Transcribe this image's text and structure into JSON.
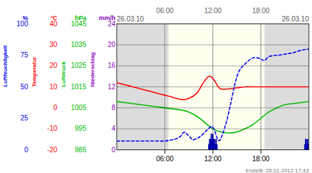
{
  "chart_data": {
    "type": "line",
    "date_start": "26.03.10",
    "date_end": "26.03.10",
    "created": "Erstellt: 26.01.2012 17:43",
    "xlim": [
      0,
      24
    ],
    "xticks": [
      {
        "value": 6,
        "label": "06:00"
      },
      {
        "value": 12,
        "label": "12:00"
      },
      {
        "value": 18,
        "label": "18:00"
      }
    ],
    "grid": true,
    "daytime": [
      6.5,
      18.5
    ],
    "night_color": "#DCDCDC",
    "day_color": "#FFFFF0",
    "series": [
      {
        "name": "Luftfeuchtigkeit",
        "unit": "%",
        "color": "#0000EE",
        "line_style": "dashed",
        "ylim": [
          0,
          100
        ],
        "yticks": [
          0,
          25,
          50,
          75,
          100
        ],
        "x": [
          0,
          1,
          2,
          3,
          4,
          5,
          6,
          6.5,
          7,
          7.5,
          8,
          8.2,
          8.5,
          8.7,
          9,
          9.3,
          9.5,
          10,
          10.5,
          11,
          11.5,
          12,
          12.5,
          13,
          14,
          15,
          16,
          17,
          18,
          18.5,
          19,
          20,
          21,
          22,
          23,
          24
        ],
        "values": [
          7,
          7,
          7,
          7,
          7,
          7,
          7,
          7.5,
          8,
          9,
          11,
          13,
          14,
          13,
          11,
          9,
          8,
          9,
          11,
          14,
          17,
          18,
          10,
          9,
          30,
          58,
          68,
          73,
          72,
          71,
          74,
          75,
          76,
          77,
          79,
          80
        ]
      },
      {
        "name": "Temperatur",
        "unit": "°C",
        "color": "#FF0000",
        "line_style": "solid",
        "ylim": [
          -20,
          40
        ],
        "yticks": [
          -20,
          -10,
          0,
          10,
          20,
          30,
          40
        ],
        "x": [
          0,
          1,
          2,
          3,
          4,
          5,
          6,
          7,
          8,
          9,
          10,
          10.5,
          11,
          11.5,
          12,
          12.5,
          13,
          14,
          15,
          16,
          17,
          18,
          19,
          20,
          21,
          22,
          23,
          24
        ],
        "values": [
          12,
          11,
          10,
          9,
          8,
          7,
          6,
          5,
          4,
          4.5,
          7,
          10,
          13,
          15,
          14,
          11,
          9,
          9,
          9.5,
          10,
          10,
          10,
          10,
          10,
          10,
          10,
          10,
          10
        ]
      },
      {
        "name": "Luftdruck",
        "unit": "hPa",
        "color": "#00BB00",
        "line_style": "solid",
        "ylim": [
          985,
          1045
        ],
        "yticks": [
          985,
          995,
          1005,
          1015,
          1025,
          1035,
          1045
        ],
        "x": [
          0,
          1,
          2,
          3,
          4,
          5,
          6,
          7,
          8,
          9,
          10,
          11,
          12,
          13,
          14,
          15,
          16,
          17,
          18,
          19,
          20,
          21,
          22,
          23,
          24
        ],
        "values": [
          1008,
          1007.5,
          1007,
          1006.5,
          1006,
          1005.5,
          1005,
          1004.5,
          1004,
          1003,
          1001,
          998,
          995,
          993.5,
          993,
          993.5,
          995,
          997,
          1000,
          1003,
          1005,
          1006.5,
          1007,
          1007.5,
          1008
        ]
      },
      {
        "name": "Niederschlag",
        "unit": "mm/h",
        "type": "bar",
        "color": "#0000AA",
        "label_color": "#8800BB",
        "ylim": [
          0,
          24
        ],
        "yticks": [
          0,
          4,
          8,
          12,
          16,
          20,
          24
        ],
        "x": [
          11.5,
          11.6,
          11.7,
          11.8,
          11.9,
          12.0,
          12.1,
          12.2,
          12.3,
          12.4,
          12.5,
          23.5,
          23.6,
          23.7,
          23.8,
          23.9,
          24.0
        ],
        "values": [
          1,
          2,
          2,
          3,
          2,
          3,
          2,
          2,
          1,
          2,
          1,
          1,
          2,
          1,
          2,
          1,
          2
        ]
      }
    ]
  }
}
